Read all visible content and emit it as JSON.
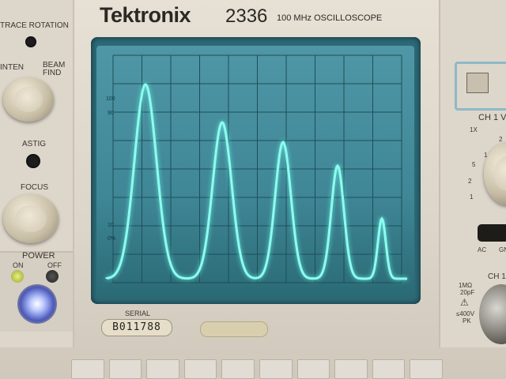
{
  "header": {
    "brand": "Tektronix",
    "model": "2336",
    "subtitle": "100 MHz OSCILLOSCOPE"
  },
  "left_controls": {
    "trace_rotation": "TRACE ROTATION",
    "inten": "INTEN",
    "beam_find": "BEAM FIND",
    "astig": "ASTIG",
    "focus": "FOCUS",
    "power": "POWER",
    "on": "ON",
    "off": "OFF"
  },
  "graticule": {
    "label_100": "100",
    "label_90": "90",
    "label_10": "10",
    "label_0": "0%"
  },
  "serial": {
    "label": "SERIAL",
    "value": "B011788"
  },
  "right_controls": {
    "ch1_volts": "CH 1 V",
    "x1": "1X",
    "scale": [
      "2",
      "1",
      "5",
      "2",
      "1"
    ],
    "ac": "AC",
    "gnd": "GN",
    "ch1_input": "CH 1",
    "impedance": "1MΩ",
    "capacitance": "20pF",
    "max_voltage": "≤400V",
    "pk": "PK"
  },
  "colors": {
    "trace": "#7ff7e8",
    "screen": "#3f8696",
    "panel": "#e0d9cd"
  }
}
